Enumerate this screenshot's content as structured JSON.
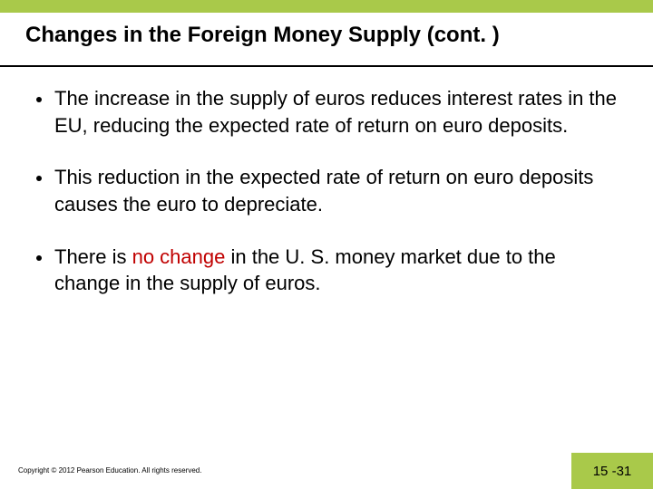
{
  "colors": {
    "accent": "#a9c94a",
    "highlight": "#c00000",
    "divider": "#000000"
  },
  "title": "Changes in the Foreign Money Supply (cont. )",
  "bullets": [
    {
      "pre": "The increase in the supply of euros reduces interest rates in the EU, reducing the expected rate of return on euro deposits.",
      "hi": "",
      "post": ""
    },
    {
      "pre": "This reduction in the expected rate of return on euro deposits causes the euro to depreciate.",
      "hi": "",
      "post": ""
    },
    {
      "pre": "There is ",
      "hi": "no change",
      "post": " in the U. S. money market due to the change in the supply of euros."
    }
  ],
  "copyright": "Copyright © 2012 Pearson Education. All rights reserved.",
  "slide_number": "15 -31"
}
